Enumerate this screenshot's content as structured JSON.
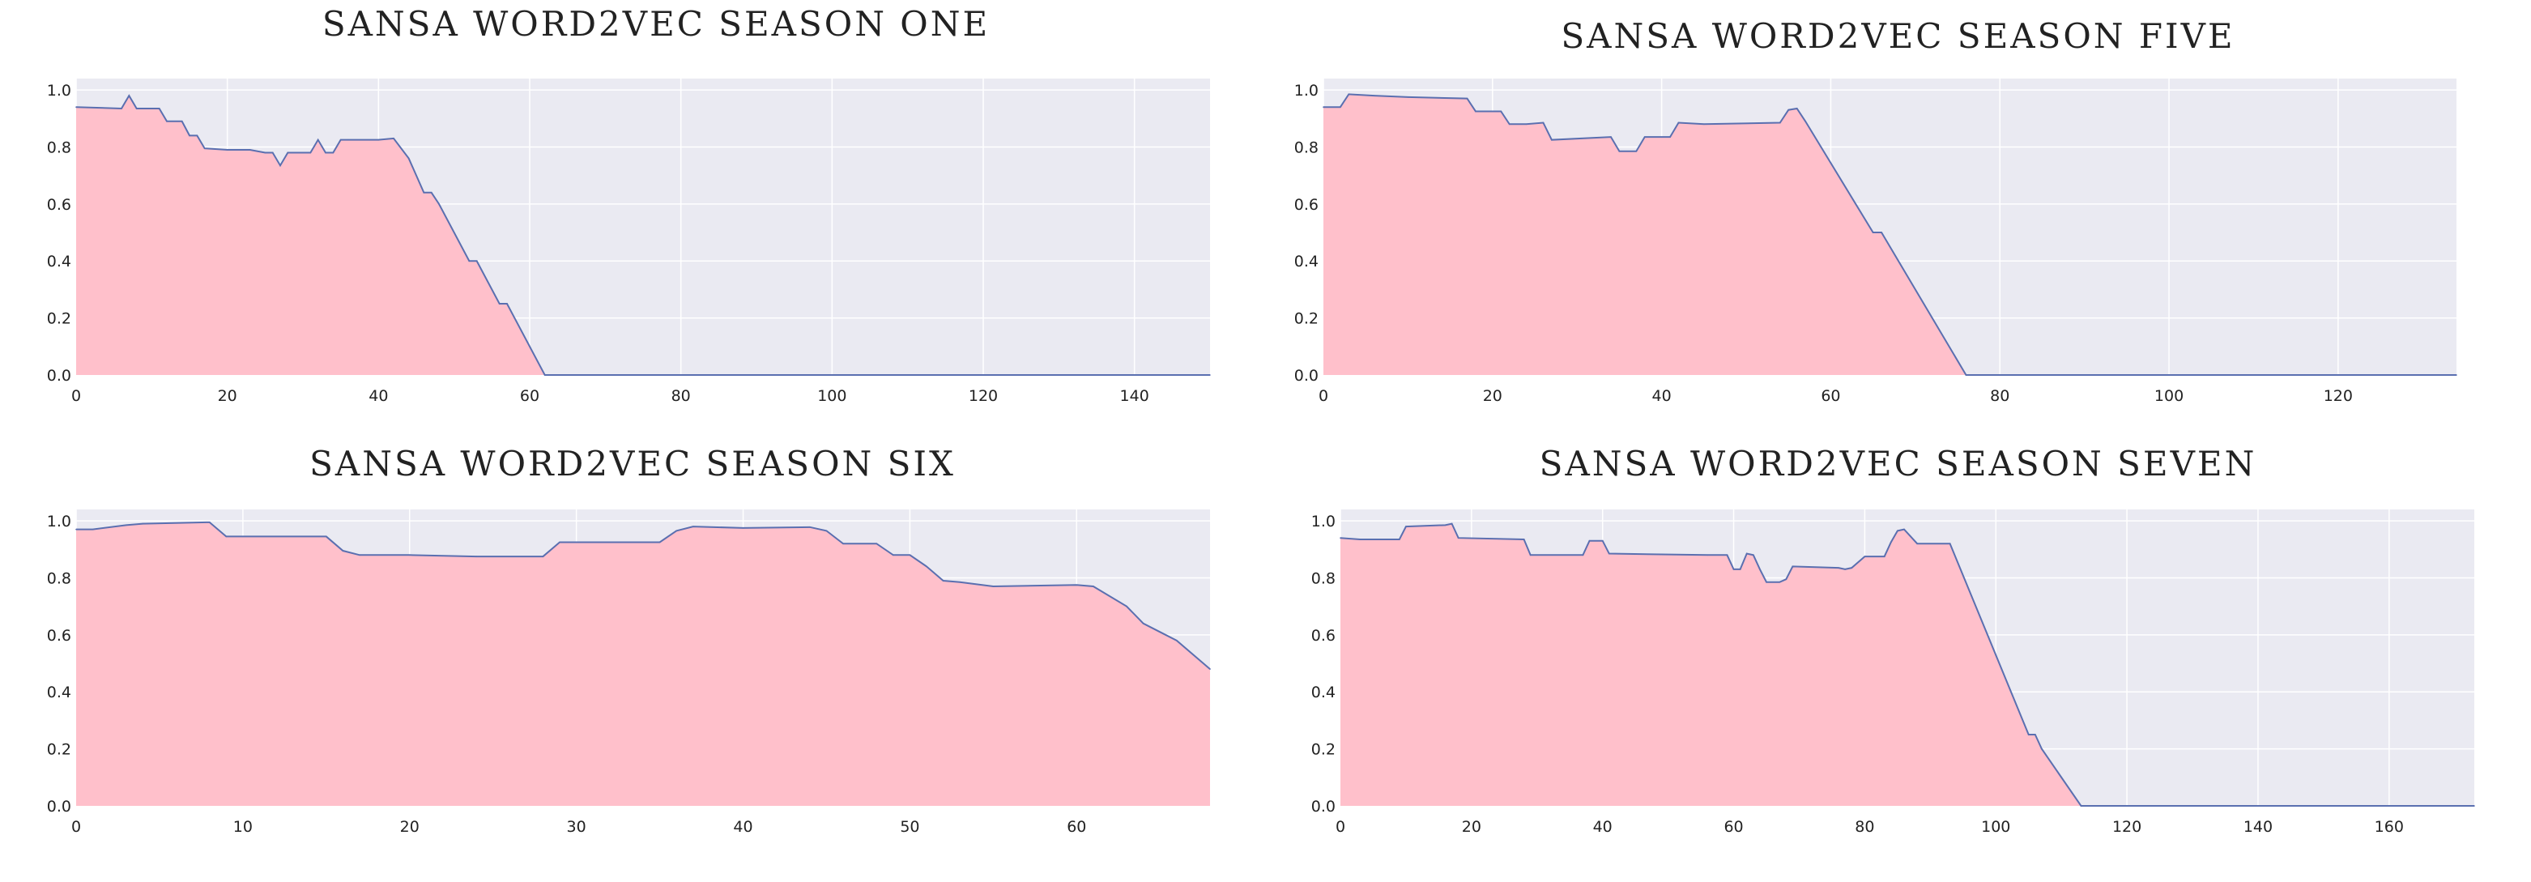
{
  "chart_data": [
    {
      "type": "area",
      "title": "SANSA WORD2VEC SEASON ONE",
      "xlim": [
        0,
        150
      ],
      "ylim": [
        0,
        1.04
      ],
      "xticks": [
        0,
        20,
        40,
        60,
        80,
        100,
        120,
        140
      ],
      "yticks": [
        0.0,
        0.2,
        0.4,
        0.6,
        0.8,
        1.0
      ],
      "grid": true,
      "fill_color": "#ffc0cb",
      "line_color": "#5a6fb0",
      "background": "#eaeaf2",
      "x": [
        0,
        6,
        7,
        8,
        11,
        12,
        14,
        15,
        16,
        17,
        20,
        23,
        25,
        26,
        27,
        28,
        31,
        32,
        33,
        34,
        35,
        36,
        40,
        42,
        44,
        46,
        47,
        48,
        52,
        53,
        56,
        57,
        62,
        65,
        150
      ],
      "y": [
        0.94,
        0.935,
        0.98,
        0.935,
        0.935,
        0.89,
        0.89,
        0.84,
        0.84,
        0.795,
        0.79,
        0.79,
        0.78,
        0.78,
        0.735,
        0.78,
        0.78,
        0.825,
        0.78,
        0.78,
        0.825,
        0.825,
        0.825,
        0.83,
        0.76,
        0.64,
        0.64,
        0.6,
        0.4,
        0.4,
        0.25,
        0.25,
        0.0,
        0.0,
        0.0
      ]
    },
    {
      "type": "area",
      "title": "SANSA WORD2VEC SEASON FIVE",
      "xlim": [
        0,
        134
      ],
      "ylim": [
        0,
        1.04
      ],
      "xticks": [
        0,
        20,
        40,
        60,
        80,
        100,
        120
      ],
      "yticks": [
        0.0,
        0.2,
        0.4,
        0.6,
        0.8,
        1.0
      ],
      "grid": true,
      "fill_color": "#ffc0cb",
      "line_color": "#5a6fb0",
      "background": "#eaeaf2",
      "x": [
        0,
        2,
        3,
        6,
        10,
        17,
        18,
        21,
        22,
        24,
        26,
        27,
        34,
        35,
        37,
        38,
        41,
        42,
        45,
        54,
        55,
        56,
        57,
        65,
        66,
        76,
        78,
        134
      ],
      "y": [
        0.94,
        0.94,
        0.985,
        0.98,
        0.975,
        0.97,
        0.925,
        0.925,
        0.88,
        0.88,
        0.885,
        0.825,
        0.835,
        0.785,
        0.785,
        0.835,
        0.835,
        0.885,
        0.88,
        0.885,
        0.93,
        0.935,
        0.89,
        0.5,
        0.5,
        0.0,
        0.0,
        0.0
      ]
    },
    {
      "type": "area",
      "title": "SANSA WORD2VEC SEASON SIX",
      "xlim": [
        0,
        68
      ],
      "ylim": [
        0,
        1.04
      ],
      "xticks": [
        0,
        10,
        20,
        30,
        40,
        50,
        60
      ],
      "yticks": [
        0.0,
        0.2,
        0.4,
        0.6,
        0.8,
        1.0
      ],
      "grid": true,
      "fill_color": "#ffc0cb",
      "line_color": "#5a6fb0",
      "background": "#eaeaf2",
      "x": [
        0,
        1,
        3,
        4,
        8,
        9,
        15,
        16,
        17,
        20,
        24,
        28,
        29,
        30,
        35,
        36,
        37,
        40,
        44,
        45,
        46,
        48,
        49,
        50,
        51,
        52,
        53,
        55,
        60,
        61,
        63,
        64,
        65,
        66,
        68
      ],
      "y": [
        0.97,
        0.97,
        0.985,
        0.99,
        0.995,
        0.945,
        0.945,
        0.895,
        0.88,
        0.88,
        0.875,
        0.875,
        0.925,
        0.925,
        0.925,
        0.965,
        0.98,
        0.975,
        0.978,
        0.965,
        0.92,
        0.92,
        0.88,
        0.88,
        0.84,
        0.79,
        0.785,
        0.77,
        0.775,
        0.77,
        0.7,
        0.64,
        0.61,
        0.58,
        0.48
      ]
    },
    {
      "type": "area",
      "title": "SANSA WORD2VEC SEASON SEVEN",
      "xlim": [
        0,
        173
      ],
      "ylim": [
        0,
        1.04
      ],
      "xticks": [
        0,
        20,
        40,
        60,
        80,
        100,
        120,
        140,
        160
      ],
      "yticks": [
        0.0,
        0.2,
        0.4,
        0.6,
        0.8,
        1.0
      ],
      "grid": true,
      "fill_color": "#ffc0cb",
      "line_color": "#5a6fb0",
      "background": "#eaeaf2",
      "x": [
        0,
        3,
        9,
        10,
        16,
        17,
        18,
        28,
        29,
        37,
        38,
        40,
        41,
        56,
        59,
        60,
        61,
        62,
        63,
        64,
        65,
        67,
        68,
        69,
        76,
        77,
        78,
        80,
        83,
        84,
        85,
        86,
        88,
        93,
        105,
        106,
        107,
        113,
        173
      ],
      "y": [
        0.94,
        0.935,
        0.935,
        0.98,
        0.985,
        0.99,
        0.94,
        0.935,
        0.88,
        0.88,
        0.93,
        0.93,
        0.885,
        0.88,
        0.88,
        0.83,
        0.83,
        0.885,
        0.88,
        0.83,
        0.785,
        0.785,
        0.795,
        0.84,
        0.835,
        0.83,
        0.835,
        0.875,
        0.875,
        0.925,
        0.965,
        0.97,
        0.92,
        0.92,
        0.25,
        0.25,
        0.2,
        0.0,
        0.0
      ]
    }
  ]
}
